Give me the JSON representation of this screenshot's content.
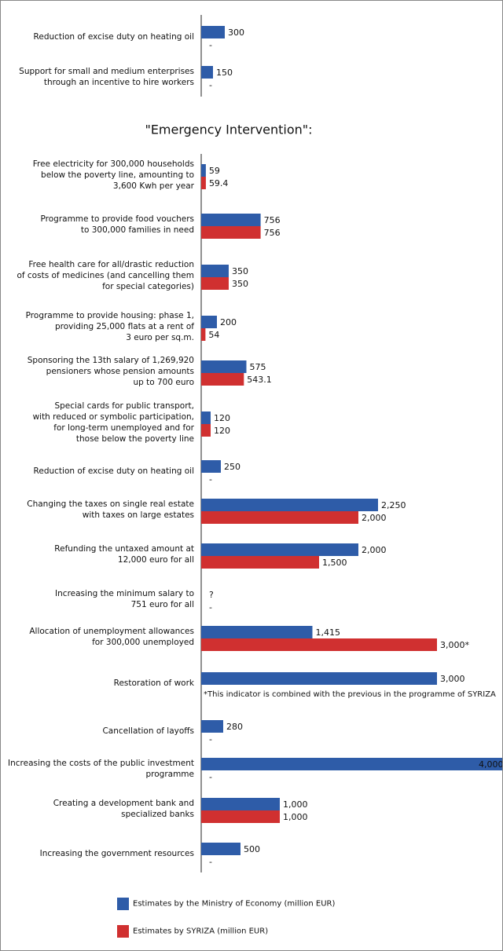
{
  "chart_data": {
    "type": "hbar",
    "categories": [
      "Reduction of excise duty on heating oil",
      "Support for small and medium enterprises\nthrough an incentive to hire workers",
      "Free electricity for 300,000 households\nbelow the poverty line, amounting to\n3,600 Kwh per year",
      "Programme to provide food vouchers\nto 300,000 families in need",
      "Free health care for all/drastic reduction\nof costs of medicines (and cancelling them\nfor special categories)",
      "Programme to provide housing: phase 1,\nproviding 25,000 flats at a rent of\n3 euro per sq.m.",
      "Sponsoring the 13th salary of 1,269,920\npensioners whose pension amounts\nup to 700 euro",
      "Special cards for public transport,\nwith reduced or symbolic participation,\nfor long-term unemployed and for\nthose below the poverty line",
      "Reduction of excise duty on heating oil",
      "Changing the taxes on single real estate\nwith taxes on large estates",
      "Refunding the untaxed amount at\n12,000 euro for all",
      "Increasing the minimum salary to\n751 euro for all",
      "Allocation of unemployment allowances\nfor 300,000 unemployed",
      "Restoration of work",
      "Cancellation of layoffs",
      "Increasing the costs of the public investment\nprogramme",
      "Creating a development bank and\nspecialized banks",
      "Increasing the government resources"
    ],
    "series": [
      {
        "name": "Estimates by the Ministry of Economy (million EUR)",
        "color": "#2e5ca8",
        "values": [
          300,
          150,
          59,
          756,
          350,
          200,
          575,
          120,
          250,
          2250,
          2000,
          null,
          1415,
          3000,
          280,
          4000,
          1000,
          500
        ],
        "value_labels": [
          "300",
          "150",
          "59",
          "756",
          "350",
          "200",
          "575",
          "120",
          "250",
          "2,250",
          "2,000",
          "?",
          "1,415",
          "3,000",
          "280",
          "4,000",
          "1,000",
          "500"
        ]
      },
      {
        "name": "Estimates by SYRIZA (million EUR)",
        "color": "#d03030",
        "values": [
          null,
          null,
          59.4,
          756,
          350,
          54,
          543.1,
          120,
          null,
          2000,
          1500,
          null,
          3000,
          null,
          null,
          null,
          1000,
          null
        ],
        "value_labels": [
          "-",
          "-",
          "59.4",
          "756",
          "350",
          "54",
          "543.1",
          "120",
          "-",
          "2,000",
          "1,500",
          "-",
          "3,000*",
          null,
          "-",
          "-",
          "1,000",
          "-"
        ]
      }
    ],
    "xlim": [
      0,
      3800
    ],
    "annotations": [
      "\"Emergency Intervention\":",
      "*This indicator is combined with the previous in the programme of SYRIZA"
    ]
  }
}
